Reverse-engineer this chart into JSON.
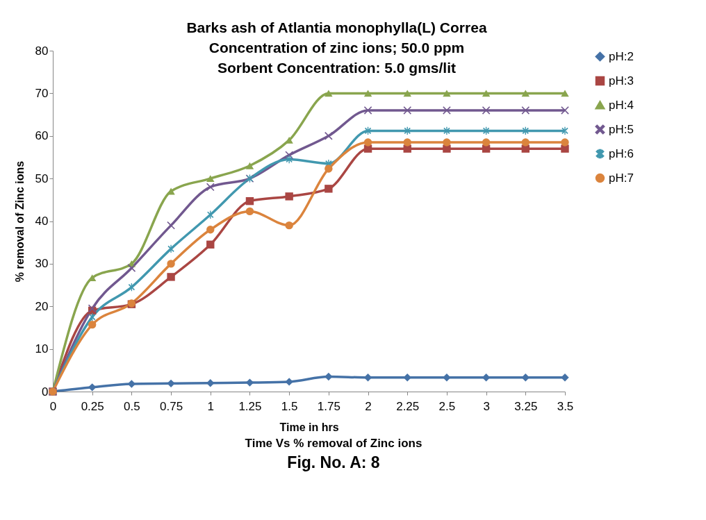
{
  "chart_data": {
    "type": "line",
    "title": "Barks  ash of Atlantia monophylla(L) Correa\nConcentration of zinc ions; 50.0 ppm\nSorbent Concentration: 5.0 gms/lit",
    "xlabel": "Time in hrs",
    "ylabel": "% removal of Zinc ions",
    "annotations": [
      "Time Vs % removal of Zinc ions",
      "Fig. No. A: 8"
    ],
    "categories": [
      "0",
      "0.25",
      "0.5",
      "0.75",
      "1",
      "1.25",
      "1.5",
      "1.75",
      "2",
      "2.25",
      "2.5",
      "3",
      "3.25",
      "3.5"
    ],
    "ylim": [
      0,
      80
    ],
    "yticks": [
      0,
      10,
      20,
      30,
      40,
      50,
      60,
      70,
      80
    ],
    "grid": false,
    "legend": "right",
    "line_style": "solid",
    "series": [
      {
        "name": "pH:2",
        "color": "#4572a7",
        "marker": "diamond",
        "values": [
          0,
          1,
          1.8,
          1.9,
          2,
          2.1,
          2.3,
          3.5,
          3.3,
          3.3,
          3.3,
          3.3,
          3.3,
          3.3
        ]
      },
      {
        "name": "pH:3",
        "color": "#aa4643",
        "marker": "square",
        "values": [
          0,
          19,
          20.5,
          26.9,
          34.5,
          44.7,
          45.8,
          47.6,
          57,
          57,
          57,
          57,
          57,
          57
        ]
      },
      {
        "name": "pH:4",
        "color": "#89a54e",
        "marker": "triangle",
        "values": [
          0,
          26.7,
          30,
          47,
          50,
          53,
          59,
          70,
          70,
          70,
          70,
          70,
          70,
          70
        ]
      },
      {
        "name": "pH:5",
        "color": "#71588f",
        "marker": "cross",
        "values": [
          0,
          19.5,
          29,
          39,
          48,
          50,
          55.5,
          60,
          66,
          66,
          66,
          66,
          66,
          66
        ]
      },
      {
        "name": "pH:6",
        "color": "#4198af",
        "marker": "cross",
        "values": [
          0,
          17.5,
          24.5,
          33.5,
          41.5,
          50,
          54.5,
          53.5,
          61.2,
          61.2,
          61.2,
          61.2,
          61.2,
          61.2
        ]
      },
      {
        "name": "pH:7",
        "color": "#db843d",
        "marker": "circle",
        "values": [
          0,
          15.7,
          20.7,
          30,
          38,
          42.3,
          39,
          52.3,
          58.5,
          58.5,
          58.5,
          58.5,
          58.5,
          58.5
        ]
      }
    ]
  }
}
